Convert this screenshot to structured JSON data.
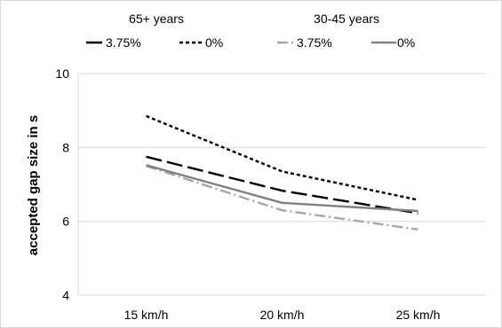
{
  "chart_data": {
    "type": "line",
    "title": "",
    "xlabel": "",
    "ylabel": "accepted gap size in s",
    "categories": [
      "15 km/h",
      "20 km/h",
      "25 km/h"
    ],
    "ylim": [
      4,
      10
    ],
    "yticks": [
      "4",
      "6",
      "8",
      "10"
    ],
    "grid": true,
    "legend_position": "top",
    "legend_groups": [
      "65+ years",
      "30-45 years"
    ],
    "series": [
      {
        "name": "3.75%",
        "group": "65+ years",
        "values": [
          7.75,
          6.83,
          6.22
        ],
        "color": "#000000",
        "dash": "long-dash"
      },
      {
        "name": "0%",
        "group": "65+ years",
        "values": [
          8.85,
          7.35,
          6.58
        ],
        "color": "#000000",
        "dash": "short-dash"
      },
      {
        "name": "3.75%",
        "group": "30-45 years",
        "values": [
          7.5,
          6.3,
          5.78
        ],
        "color": "#a6a6a6",
        "dash": "dash-dot"
      },
      {
        "name": "0%",
        "group": "30-45 years",
        "values": [
          7.52,
          6.5,
          6.28
        ],
        "color": "#808080",
        "dash": "solid"
      }
    ]
  }
}
